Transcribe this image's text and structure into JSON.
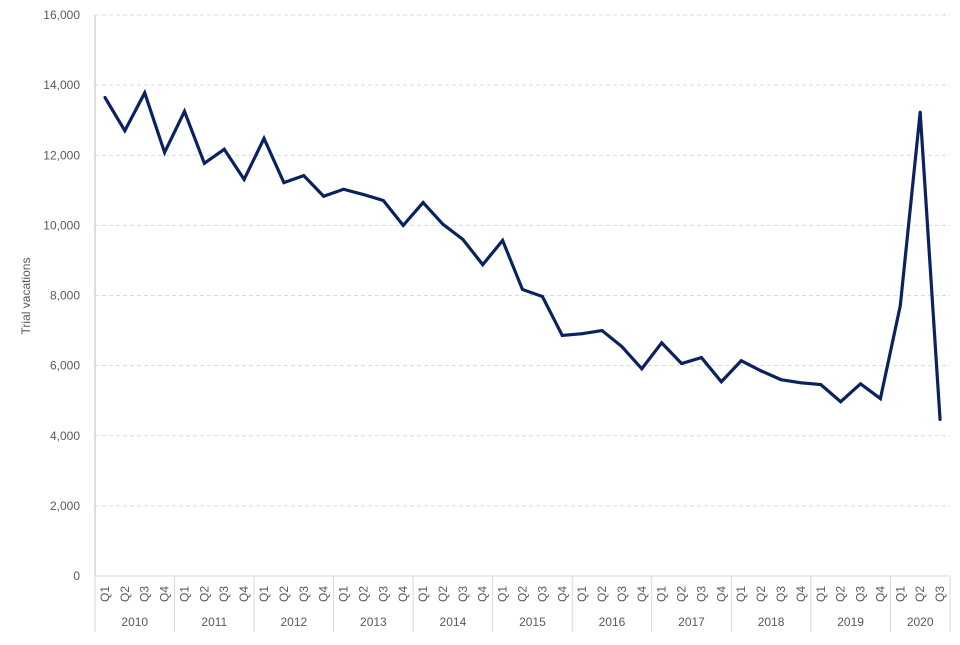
{
  "chart_data": {
    "type": "line",
    "title": "",
    "xlabel": "",
    "ylabel": "Trial vacations",
    "ylim": [
      0,
      16000
    ],
    "yticks": [
      0,
      2000,
      4000,
      6000,
      8000,
      10000,
      12000,
      14000,
      16000
    ],
    "ytick_labels": [
      "0",
      "2,000",
      "4,000",
      "6,000",
      "8,000",
      "10,000",
      "12,000",
      "14,000",
      "16,000"
    ],
    "grid": true,
    "legend": "none",
    "line_color": "#0b2260",
    "years": [
      {
        "label": "2010",
        "quarters": [
          "Q1",
          "Q2",
          "Q3",
          "Q4"
        ]
      },
      {
        "label": "2011",
        "quarters": [
          "Q1",
          "Q2",
          "Q3",
          "Q4"
        ]
      },
      {
        "label": "2012",
        "quarters": [
          "Q1",
          "Q2",
          "Q3",
          "Q4"
        ]
      },
      {
        "label": "2013",
        "quarters": [
          "Q1",
          "Q2",
          "Q3",
          "Q4"
        ]
      },
      {
        "label": "2014",
        "quarters": [
          "Q1",
          "Q2",
          "Q3",
          "Q4"
        ]
      },
      {
        "label": "2015",
        "quarters": [
          "Q1",
          "Q2",
          "Q3",
          "Q4"
        ]
      },
      {
        "label": "2016",
        "quarters": [
          "Q1",
          "Q2",
          "Q3",
          "Q4"
        ]
      },
      {
        "label": "2017",
        "quarters": [
          "Q1",
          "Q2",
          "Q3",
          "Q4"
        ]
      },
      {
        "label": "2018",
        "quarters": [
          "Q1",
          "Q2",
          "Q3",
          "Q4"
        ]
      },
      {
        "label": "2019",
        "quarters": [
          "Q1",
          "Q2",
          "Q3",
          "Q4"
        ]
      },
      {
        "label": "2020",
        "quarters": [
          "Q1",
          "Q2",
          "Q3"
        ]
      }
    ],
    "series": [
      {
        "name": "Trial vacations",
        "values": [
          13650,
          12700,
          13780,
          12080,
          13250,
          11770,
          12170,
          11310,
          12480,
          11220,
          11420,
          10830,
          11030,
          10880,
          10710,
          10000,
          10650,
          10030,
          9600,
          8880,
          9570,
          8170,
          7970,
          6860,
          6910,
          7000,
          6540,
          5910,
          6650,
          6060,
          6230,
          5540,
          6140,
          5850,
          5600,
          5510,
          5460,
          4970,
          5480,
          5060,
          7710,
          13230,
          4460
        ]
      }
    ]
  }
}
